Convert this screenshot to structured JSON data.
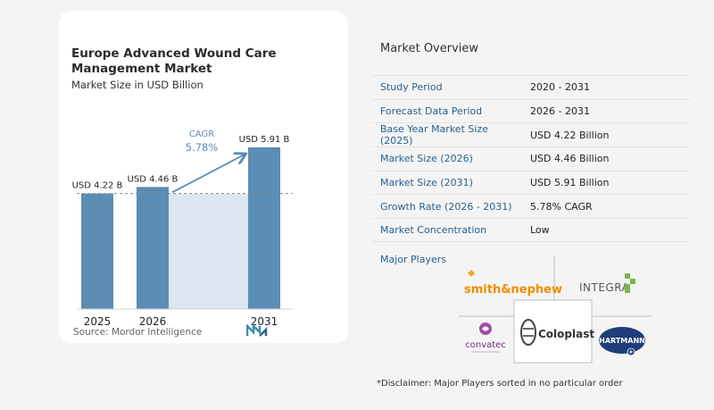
{
  "chart": {
    "title": "Europe Advanced Wound Care Management Market",
    "subtitle": "Market Size in USD Billion",
    "source": "Source:  Mordor Intelligence",
    "cagr_label": "CAGR",
    "cagr_value": "5.78%"
  },
  "chart_data": {
    "type": "bar",
    "categories": [
      "2025",
      "2026",
      "2031"
    ],
    "values": [
      4.22,
      4.46,
      5.91
    ],
    "value_labels": [
      "USD 4.22 B",
      "USD 4.46 B",
      "USD 5.91 B"
    ],
    "title": "Europe Advanced Wound Care Management Market",
    "subtitle": "Market Size in USD Billion",
    "xlabel": "",
    "ylabel": "",
    "ylim": [
      0,
      6.2
    ],
    "reference_line": 4.22,
    "annotation": "CAGR 5.78%",
    "colors": {
      "bar": "#5b8db5",
      "highlight": "#dbe6f0",
      "arrow": "#5b8db5"
    }
  },
  "overview": {
    "title": "Market Overview",
    "rows": [
      {
        "label": "Study Period",
        "value": "2020 - 2031"
      },
      {
        "label": "Forecast Data Period",
        "value": "2026 - 2031"
      },
      {
        "label": "Base Year Market Size (2025)",
        "value": "USD 4.22 Billion"
      },
      {
        "label": "Market Size (2026)",
        "value": "USD 4.46 Billion"
      },
      {
        "label": "Market Size (2031)",
        "value": "USD 5.91 Billion"
      },
      {
        "label": "Growth Rate (2026 - 2031)",
        "value": "5.78% CAGR"
      },
      {
        "label": "Market Concentration",
        "value": "Low"
      }
    ]
  },
  "players": {
    "title": "Major Players",
    "logos": {
      "smith_nephew": "smith&nephew",
      "integra": "INTEGRA",
      "convatec": "convatec",
      "coloplast": "Coloplast",
      "hartmann": "HARTMANN"
    }
  },
  "disclaimer": "*Disclaimer: Major Players sorted in no particular order",
  "colors": {
    "accent": "#2a5f8c",
    "bar": "#5b8db5"
  }
}
